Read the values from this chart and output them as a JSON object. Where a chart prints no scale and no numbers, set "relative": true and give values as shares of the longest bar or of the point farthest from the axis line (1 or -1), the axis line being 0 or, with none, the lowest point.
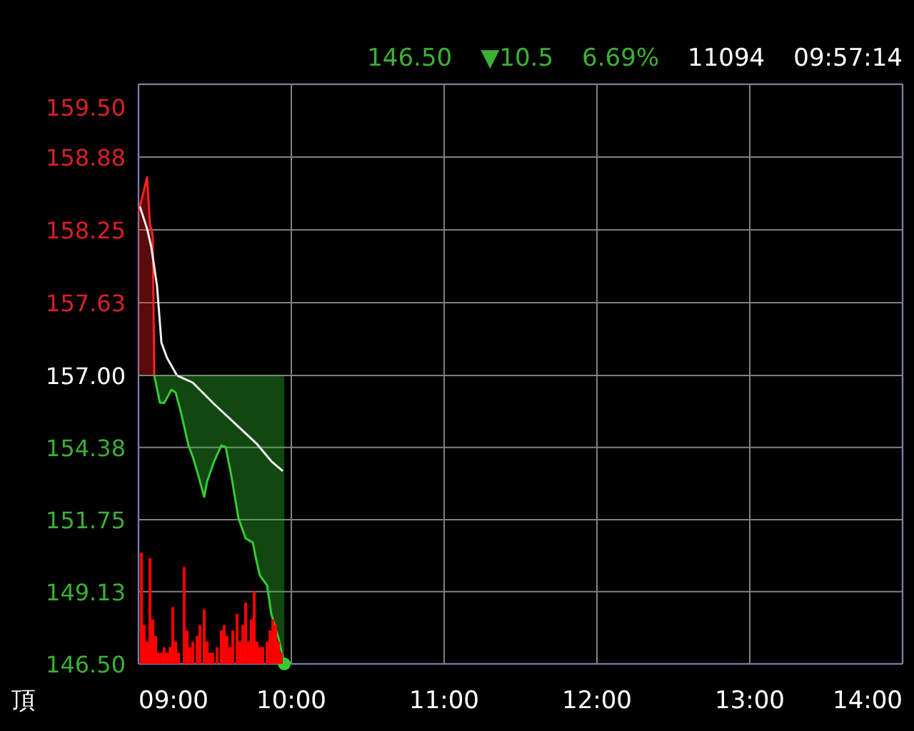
{
  "chart_data": [
    {
      "type": "area",
      "x": [
        9.0,
        9.037,
        9.056,
        9.075,
        9.093,
        9.103
      ],
      "xlim": [
        9,
        14
      ],
      "xticks": [
        9,
        10,
        11,
        12,
        13,
        14
      ],
      "ylim": [
        157,
        159.5
      ],
      "yticks": [
        {
          "value": 157.625,
          "label": "157.63"
        },
        {
          "value": 158.25,
          "label": "158.25"
        },
        {
          "value": 158.875,
          "label": "158.88"
        },
        {
          "value": 159.5,
          "label": "159.50"
        }
      ],
      "tick_labels": "y",
      "grid": true,
      "annotations": [
        "146.50",
        "▼10.5",
        "6.69%",
        "11094",
        "09:57:14"
      ],
      "series": [
        {
          "color": "#ff2020",
          "values": [
            158.4,
            158.6,
            158.7,
            158.3,
            158.2,
            157.0
          ]
        },
        {
          "type": "line",
          "color": "#f0f0f0",
          "x": [
            9.009,
            9.056,
            9.084,
            9.121,
            9.15,
            9.187,
            9.252
          ],
          "values": [
            158.45,
            158.26,
            158.1,
            157.77,
            157.28,
            157.15,
            157.0
          ]
        }
      ]
    },
    {
      "type": "line",
      "xlim": [
        9,
        14
      ],
      "xticks": [
        {
          "value": 9,
          "label": "09:00"
        },
        {
          "value": 10,
          "label": "10:00"
        },
        {
          "value": 11,
          "label": "11:00"
        },
        {
          "value": 12,
          "label": "12:00"
        },
        {
          "value": 13,
          "label": "13:00"
        },
        {
          "value": 14,
          "label": "14:00"
        }
      ],
      "ylim": [
        146.5,
        157
      ],
      "yticks": [
        {
          "value": 146.5,
          "label": "146.50"
        },
        {
          "value": 149.13,
          "label": "149.13"
        },
        {
          "value": 151.75,
          "label": "151.75"
        },
        {
          "value": 154.38,
          "label": "154.38"
        },
        {
          "value": 157,
          "label": "157.00"
        }
      ],
      "grid": true,
      "annotations": [
        "頂"
      ],
      "series": [
        {
          "color": "#33cc33",
          "x": [
            9.103,
            9.14,
            9.168,
            9.215,
            9.243,
            9.28,
            9.327,
            9.355,
            9.383,
            9.43,
            9.449,
            9.495,
            9.542,
            9.57,
            9.607,
            9.654,
            9.701,
            9.748,
            9.766,
            9.794,
            9.841,
            9.869,
            9.916,
            9.954
          ],
          "values": [
            157.0,
            156.01,
            156.0,
            156.48,
            156.38,
            155.6,
            154.45,
            154.04,
            153.52,
            152.58,
            153.15,
            153.88,
            154.45,
            154.4,
            153.36,
            151.8,
            151.07,
            150.92,
            150.4,
            149.72,
            149.36,
            148.32,
            147.44,
            146.5
          ],
          "lower": [
            157.0,
            156.01,
            156.0,
            156.48,
            156.38,
            155.6,
            154.45,
            154.04,
            153.52,
            152.58,
            153.15,
            153.88,
            154.45,
            154.4,
            153.36,
            151.8,
            151.07,
            150.92,
            150.4,
            149.72,
            149.36,
            148.32,
            147.44,
            146.5
          ],
          "upper": [
            157,
            157,
            157,
            157,
            157,
            157,
            157,
            157,
            157,
            157,
            157,
            157,
            157,
            157,
            157,
            157,
            157,
            157,
            157,
            157,
            157,
            157,
            157,
            157
          ]
        },
        {
          "type": "line",
          "color": "#f0f0f0",
          "x": [
            9.252,
            9.355,
            9.495,
            9.636,
            9.776,
            9.869,
            9.944
          ],
          "values": [
            157.0,
            156.74,
            155.96,
            155.23,
            154.5,
            153.88,
            153.52
          ]
        },
        {
          "type": "scatter",
          "marker": "circle",
          "color": "#33cc33",
          "x": [
            9.954
          ],
          "values": [
            146.5
          ]
        }
      ]
    },
    {
      "type": "bar",
      "relative": true,
      "color": "#ff0000",
      "xlim": [
        9,
        14
      ],
      "tick_labels": false,
      "x": [
        9.019,
        9.037,
        9.056,
        9.075,
        9.093,
        9.112,
        9.131,
        9.15,
        9.168,
        9.187,
        9.206,
        9.224,
        9.243,
        9.262,
        9.299,
        9.318,
        9.336,
        9.355,
        9.383,
        9.402,
        9.43,
        9.449,
        9.467,
        9.486,
        9.514,
        9.542,
        9.561,
        9.579,
        9.598,
        9.617,
        9.645,
        9.664,
        9.682,
        9.701,
        9.72,
        9.738,
        9.757,
        9.776,
        9.794,
        9.813,
        9.841,
        9.86,
        9.879,
        9.897,
        9.916,
        9.935
      ],
      "values": [
        1.0,
        0.35,
        0.2,
        0.95,
        0.4,
        0.25,
        0.1,
        0.1,
        0.15,
        0.1,
        0.15,
        0.51,
        0.2,
        0.1,
        0.87,
        0.3,
        0.15,
        0.2,
        0.25,
        0.35,
        0.49,
        0.2,
        0.1,
        0.1,
        0.15,
        0.3,
        0.35,
        0.25,
        0.15,
        0.3,
        0.45,
        0.2,
        0.35,
        0.55,
        0.2,
        0.4,
        0.65,
        0.2,
        0.15,
        0.15,
        0.2,
        0.3,
        0.4,
        0.35,
        0.2,
        0.1
      ]
    }
  ]
}
